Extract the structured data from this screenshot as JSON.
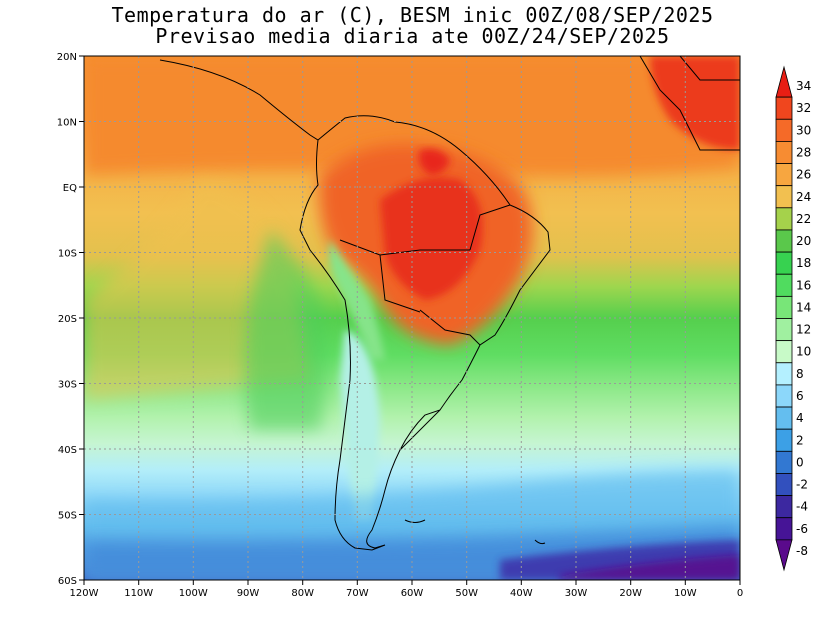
{
  "title": {
    "line1": "Temperatura do ar (C), BESM inic 00Z/08/SEP/2025",
    "line2": "Previsao media diaria ate 00Z/24/SEP/2025"
  },
  "map": {
    "lon_range": [
      -120,
      0
    ],
    "lat_range": [
      -60,
      20
    ],
    "x_ticks": [
      "120W",
      "110W",
      "100W",
      "90W",
      "80W",
      "70W",
      "60W",
      "50W",
      "40W",
      "30W",
      "20W",
      "10W",
      "0"
    ],
    "y_ticks": [
      "20N",
      "10N",
      "EQ",
      "10S",
      "20S",
      "30S",
      "40S",
      "50S",
      "60S"
    ]
  },
  "colorbar": {
    "levels": [
      "34",
      "32",
      "30",
      "28",
      "26",
      "24",
      "22",
      "20",
      "18",
      "16",
      "14",
      "12",
      "10",
      "8",
      "6",
      "4",
      "2",
      "0",
      "-2",
      "-4",
      "-6",
      "-8"
    ],
    "colors": [
      "#e81e14",
      "#f0461e",
      "#f56a28",
      "#f78c32",
      "#f7a640",
      "#f2c050",
      "#a5d24b",
      "#5ac84b",
      "#37d250",
      "#50dc5f",
      "#78e678",
      "#a0f0a0",
      "#c8fac8",
      "#b4f0ff",
      "#8cd7fa",
      "#64beef",
      "#3ca0e6",
      "#3278d2",
      "#3250be",
      "#3c28a0",
      "#461496",
      "#5a0a8c"
    ]
  }
}
